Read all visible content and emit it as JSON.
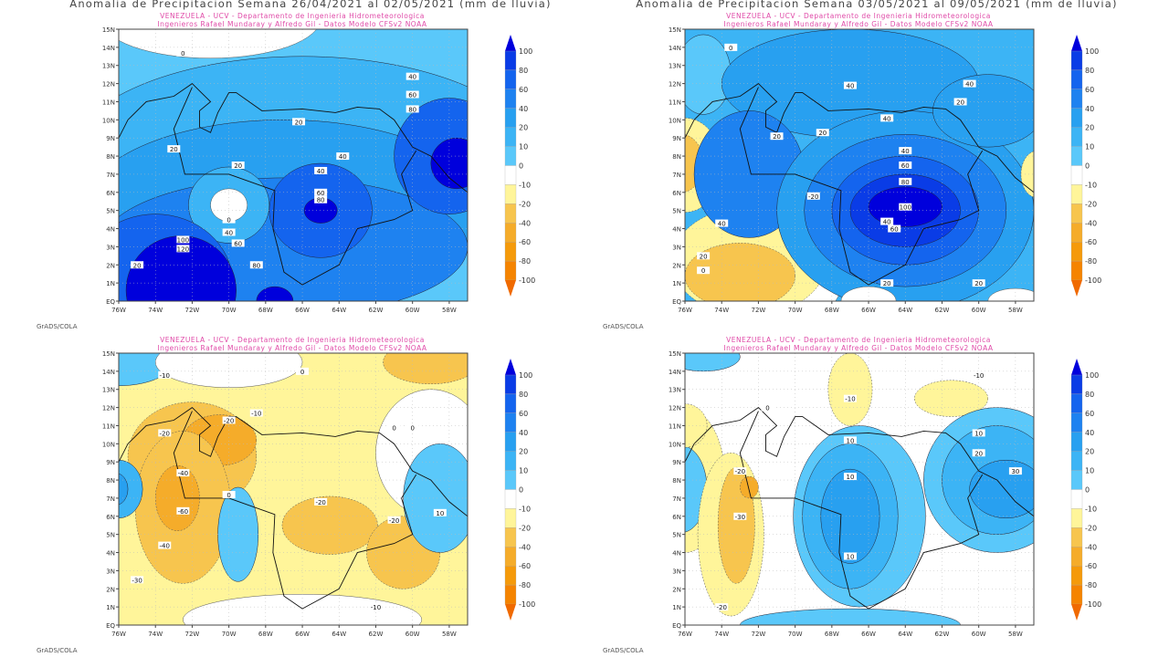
{
  "panels": [
    {
      "title": "Anomalia de Precipitacion Semana 26/04/2021 al 02/05/2021 (mm de lluvia)",
      "subtitle1": "VENEZUELA - UCV - Departamento de Ingenieria Hidrometeorologica",
      "subtitle2": "Ingenieros Rafael Mundaray y Alfredo Gil - Datos Modelo CFSv2 NOAA",
      "credit": "GrADS/COLA",
      "contour_labels": [
        "0",
        "20",
        "40",
        "20",
        "40",
        "60",
        "20",
        "40",
        "60",
        "80",
        "20",
        "0",
        "40",
        "60",
        "100",
        "120",
        "80",
        "80"
      ]
    },
    {
      "title": "Anomalia de Precipitacion Semana 03/05/2021 al 09/05/2021 (mm de lluvia)",
      "subtitle1": "VENEZUELA - UCV - Departamento de Ingenieria Hidrometeorologica",
      "subtitle2": "Ingenieros Rafael Mundaray y Alfredo Gil - Datos Modelo CFSv2 NOAA",
      "credit": "GrADS/COLA",
      "contour_labels": [
        "0",
        "40",
        "20",
        "40",
        "20",
        "20",
        "40",
        "60",
        "80",
        "100",
        "60",
        "40",
        "20",
        "20",
        "40",
        "-20",
        "40",
        "20",
        "0"
      ]
    },
    {
      "title": "",
      "subtitle1": "VENEZUELA - UCV - Departamento de Ingenieria Hidrometeorologica",
      "subtitle2": "Ingenieros Rafael Mundaray y Alfredo Gil - Datos Modelo CFSv2 NOAA",
      "credit": "GrADS/COLA",
      "contour_labels": [
        "-10",
        "0",
        "-20",
        "-20",
        "-40",
        "-60",
        "-40",
        "-30",
        "0",
        "-10",
        "0",
        "-20",
        "-20",
        "-10",
        "10",
        "0"
      ]
    },
    {
      "title": "",
      "subtitle1": "VENEZUELA - UCV - Departamento de Ingenieria Hidrometeorologica",
      "subtitle2": "Ingenieros Rafael Mundaray y Alfredo Gil - Datos Modelo CFSv2 NOAA",
      "credit": "GrADS/COLA",
      "contour_labels": [
        "-10",
        "-10",
        "0",
        "10",
        "10",
        "20",
        "10",
        "30",
        "-20",
        "-30",
        "-20",
        "10"
      ]
    }
  ],
  "chart_data": {
    "type": "heatmap",
    "x_ticks": [
      "76W",
      "74W",
      "72W",
      "70W",
      "68W",
      "66W",
      "64W",
      "62W",
      "60W",
      "58W"
    ],
    "y_ticks": [
      "EQ",
      "1N",
      "2N",
      "3N",
      "4N",
      "5N",
      "6N",
      "7N",
      "8N",
      "9N",
      "10N",
      "11N",
      "12N",
      "13N",
      "14N",
      "15N"
    ],
    "xlim": [
      "76W",
      "57W"
    ],
    "ylim": [
      "EQ",
      "15N"
    ],
    "grid": true,
    "legend_placement": "right",
    "colorbar_labels": [
      "100",
      "80",
      "60",
      "40",
      "20",
      "10",
      "0",
      "-10",
      "-20",
      "-40",
      "-60",
      "-80",
      "-100"
    ],
    "colorbar_colors": [
      "#0000dc",
      "#0a3ce6",
      "#1464ee",
      "#1e82f0",
      "#28a0f0",
      "#3cb4f5",
      "#5ac8fa",
      "#ffffff",
      "#fff59a",
      "#f7c54e",
      "#f5ac2a",
      "#f59a0a",
      "#f58400",
      "#f06a00"
    ]
  }
}
